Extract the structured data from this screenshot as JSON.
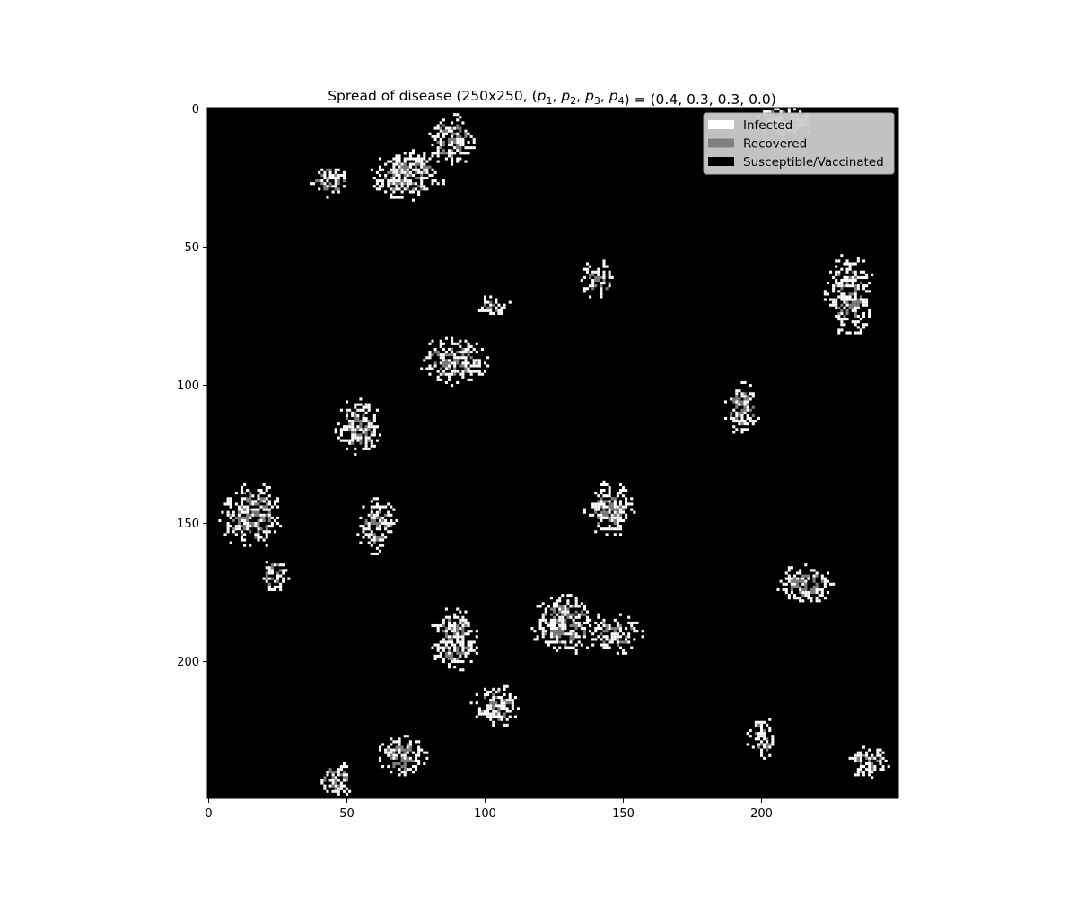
{
  "chart_data": {
    "type": "heatmap",
    "title": "Spread of disease (250x250, (p1, p2, p3, p4) = (0.4, 0.3, 0.3, 0.0)",
    "title_parts": {
      "prefix": "Spread of disease (250x250, (",
      "params": [
        {
          "base": "p",
          "sub": "1"
        },
        {
          "base": "p",
          "sub": "2"
        },
        {
          "base": "p",
          "sub": "3"
        },
        {
          "base": "p",
          "sub": "4"
        }
      ],
      "suffix": ") = (0.4, 0.3, 0.3, 0.0)"
    },
    "grid_size": [
      250,
      250
    ],
    "xlim": [
      0,
      250
    ],
    "ylim": [
      250,
      0
    ],
    "x_ticks": [
      0,
      50,
      100,
      150,
      200
    ],
    "y_ticks": [
      0,
      50,
      100,
      150,
      200
    ],
    "grid": false,
    "legend_position": "upper right",
    "background_color": "#000000",
    "legend": [
      {
        "label": "Infected",
        "color": "#ffffff"
      },
      {
        "label": "Recovered",
        "color": "#808080"
      },
      {
        "label": "Susceptible/Vaccinated",
        "color": "#000000"
      }
    ],
    "state_colors": {
      "infected": "#ffffff",
      "recovered": "#808080",
      "susceptible": "#000000"
    },
    "clusters": [
      {
        "cx": 44,
        "cy": 26,
        "rx": 6,
        "ry": 5
      },
      {
        "cx": 72,
        "cy": 24,
        "rx": 11,
        "ry": 7
      },
      {
        "cx": 88,
        "cy": 11,
        "rx": 7,
        "ry": 8
      },
      {
        "cx": 103,
        "cy": 71,
        "rx": 5,
        "ry": 3
      },
      {
        "cx": 89,
        "cy": 91,
        "rx": 10,
        "ry": 7
      },
      {
        "cx": 141,
        "cy": 62,
        "rx": 5,
        "ry": 6
      },
      {
        "cx": 232,
        "cy": 67,
        "rx": 7,
        "ry": 12
      },
      {
        "cx": 193,
        "cy": 109,
        "rx": 5,
        "ry": 8
      },
      {
        "cx": 54,
        "cy": 115,
        "rx": 7,
        "ry": 8
      },
      {
        "cx": 15,
        "cy": 147,
        "rx": 9,
        "ry": 10
      },
      {
        "cx": 61,
        "cy": 151,
        "rx": 6,
        "ry": 8
      },
      {
        "cx": 24,
        "cy": 169,
        "rx": 4,
        "ry": 5
      },
      {
        "cx": 145,
        "cy": 145,
        "rx": 7,
        "ry": 8
      },
      {
        "cx": 216,
        "cy": 172,
        "rx": 8,
        "ry": 6
      },
      {
        "cx": 89,
        "cy": 192,
        "rx": 7,
        "ry": 9
      },
      {
        "cx": 129,
        "cy": 187,
        "rx": 10,
        "ry": 9
      },
      {
        "cx": 147,
        "cy": 190,
        "rx": 8,
        "ry": 6
      },
      {
        "cx": 104,
        "cy": 216,
        "rx": 7,
        "ry": 6
      },
      {
        "cx": 70,
        "cy": 234,
        "rx": 7,
        "ry": 6
      },
      {
        "cx": 46,
        "cy": 243,
        "rx": 5,
        "ry": 6
      },
      {
        "cx": 200,
        "cy": 228,
        "rx": 4,
        "ry": 7
      },
      {
        "cx": 239,
        "cy": 237,
        "rx": 6,
        "ry": 5
      },
      {
        "cx": 207,
        "cy": 4,
        "rx": 8,
        "ry": 4
      },
      {
        "cx": 212,
        "cy": 5,
        "rx": 5,
        "ry": 4
      }
    ]
  }
}
